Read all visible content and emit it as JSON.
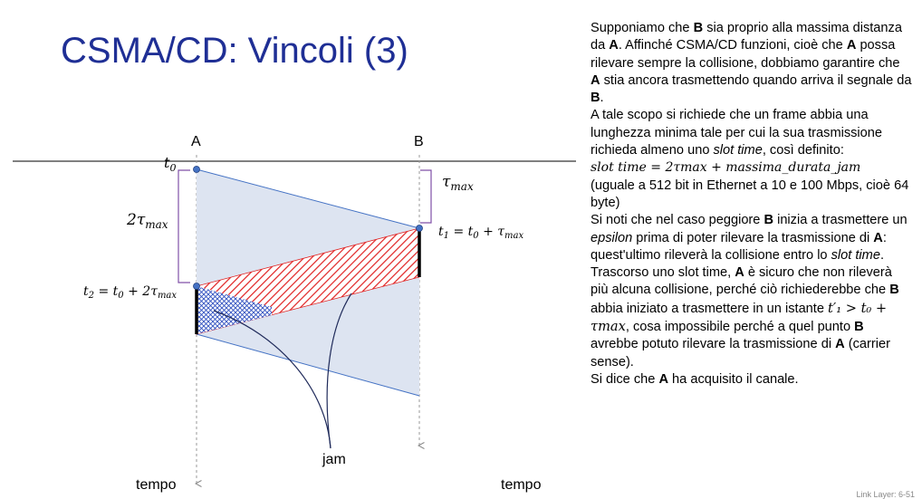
{
  "slide": {
    "title": "CSMA/CD: Vincoli (3)",
    "footer": "Link Layer: 6-51"
  },
  "diagram": {
    "node_a": "A",
    "node_b": "B",
    "t0": "t",
    "t0_sub": "0",
    "tau_b": "τ",
    "tau_b_sub": "max",
    "two_tau": "2τ",
    "two_tau_sub": "max",
    "t1": "t",
    "t1_sub": "1",
    "t1_rhs": " = t",
    "t1_rhs_sub": "0",
    "t1_rhs2": " + τ",
    "t1_rhs2_sub": "max",
    "t2": "t",
    "t2_sub": "2",
    "t2_rhs": " = t",
    "t2_rhs_sub": "0",
    "t2_rhs2": " + 2τ",
    "t2_rhs2_sub": "max",
    "jam": "jam",
    "tempo_left": "tempo",
    "tempo_right": "tempo"
  },
  "text": {
    "p1_a": "Supponiamo che ",
    "p1_b": "B",
    "p1_c": " sia proprio alla massima distanza da ",
    "p1_d": "A",
    "p1_e": ". Affinché CSMA/CD funzioni, cioè che ",
    "p1_f": "A",
    "p1_g": " possa rilevare sempre la collisione, dobbiamo garantire che ",
    "p1_h": "A",
    "p1_i": " stia ancora trasmettendo quando arriva il segnale da ",
    "p1_j": "B",
    "p1_k": ".",
    "p2_a": "A tale scopo si richiede che un frame abbia una lunghezza minima tale per cui la sua trasmissione richieda almeno uno ",
    "p2_b": "slot time",
    "p2_c": ", così definito:",
    "formula": "slot time = 2τmax + massima_durata_jam",
    "p3": "(uguale a 512 bit in Ethernet a 10 e 100 Mbps, cioè 64 byte)",
    "p4_a": "Si noti che nel caso peggiore ",
    "p4_b": "B",
    "p4_c": " inizia a trasmettere un ",
    "p4_d": "epsilon",
    "p4_e": " prima di poter rilevare la trasmissione di ",
    "p4_f": "A",
    "p4_g": ": quest'ultimo rileverà la collisione entro lo ",
    "p4_h": "slot time",
    "p4_i": ". Trascorso uno slot time, ",
    "p4_j": "A",
    "p4_k": " è sicuro che non rileverà più alcuna collisione, perché ciò richiederebbe che ",
    "p4_l": "B",
    "p4_m": " abbia iniziato a trasmettere in un istante ",
    "p4_n": "t′₁ > t₀ + τmax",
    "p4_o": ", cosa impossibile perché a quel punto ",
    "p4_p": "B",
    "p4_q": " avrebbe potuto rilevare la trasmissione di ",
    "p4_r": "A",
    "p4_s": " (carrier sense).",
    "p5_a": "Si dice che ",
    "p5_b": "A",
    "p5_c": " ha acquisito il canale."
  },
  "colors": {
    "title": "#1f2f95",
    "line_blue": "#4472c4",
    "fill_light": "#dde4f1",
    "hatch_red": "#e02020",
    "hatch_blue": "#3050c0",
    "bracket": "#8050a8",
    "point": "#4472c4"
  }
}
